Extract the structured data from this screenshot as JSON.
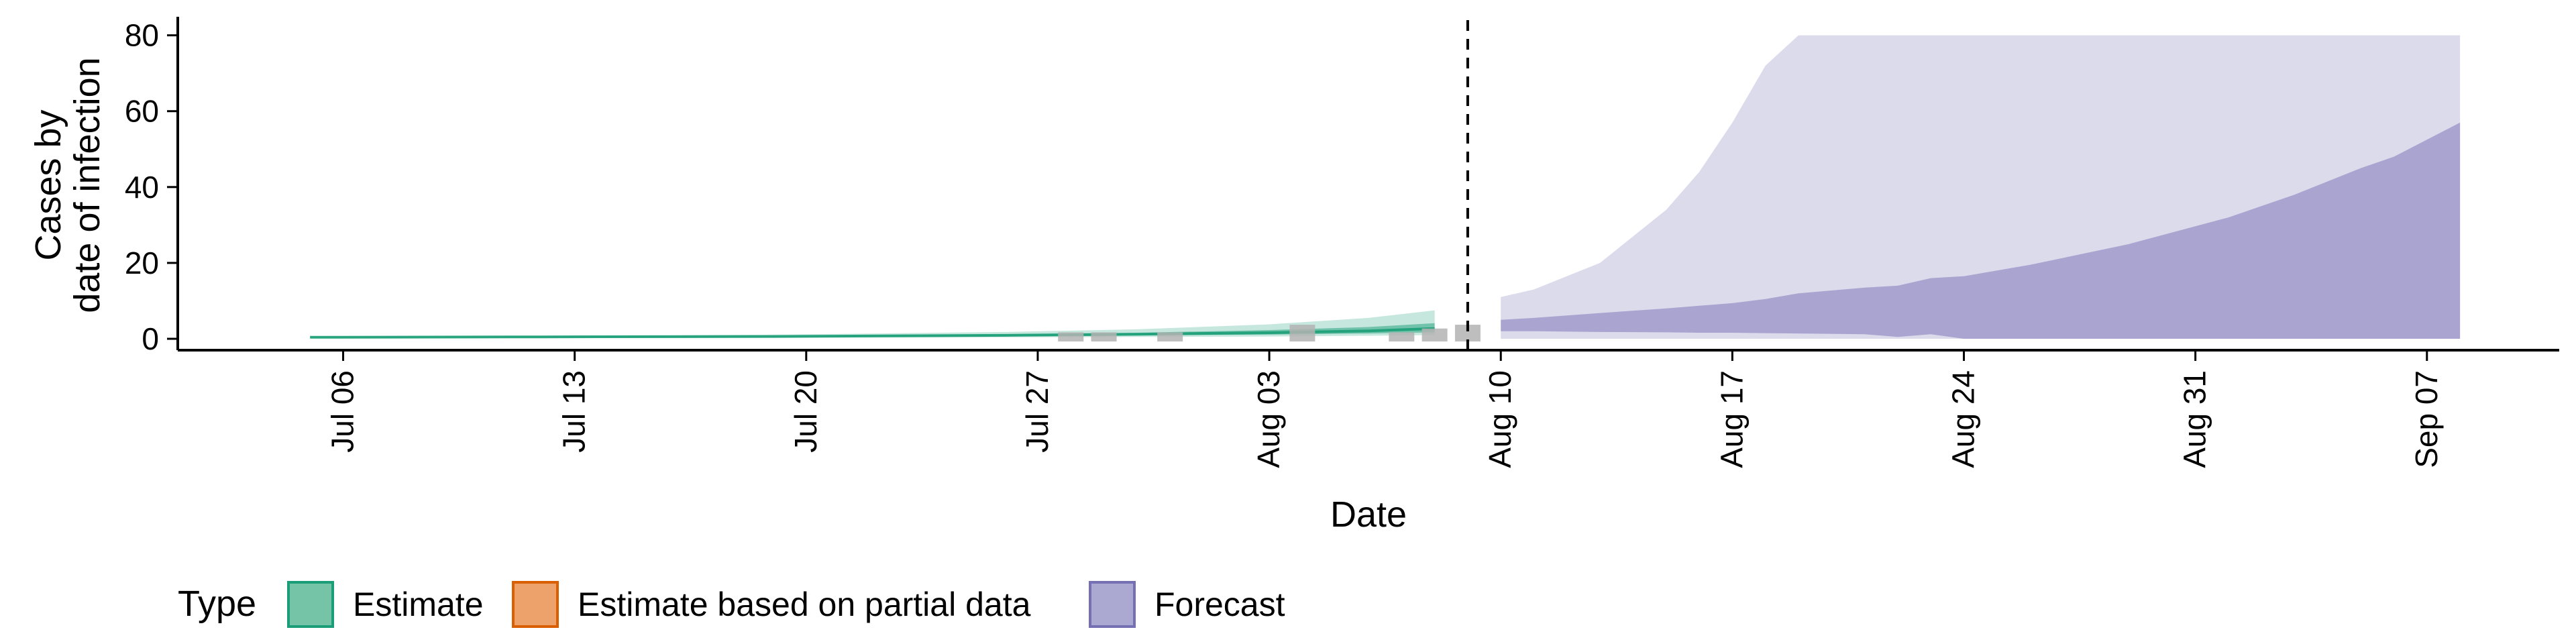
{
  "chart_data": {
    "type": "area",
    "title": "",
    "xlabel": "Date",
    "ylabel": [
      "Cases by",
      "date of infection"
    ],
    "xlim": [
      "2020-07-01",
      "2020-09-11"
    ],
    "ylim": [
      -3,
      84
    ],
    "x_ticks": [
      {
        "date": "2020-07-06",
        "label": "Jul 06"
      },
      {
        "date": "2020-07-13",
        "label": "Jul 13"
      },
      {
        "date": "2020-07-20",
        "label": "Jul 20"
      },
      {
        "date": "2020-07-27",
        "label": "Jul 27"
      },
      {
        "date": "2020-08-03",
        "label": "Aug 03"
      },
      {
        "date": "2020-08-10",
        "label": "Aug 10"
      },
      {
        "date": "2020-08-17",
        "label": "Aug 17"
      },
      {
        "date": "2020-08-24",
        "label": "Aug 24"
      },
      {
        "date": "2020-08-31",
        "label": "Aug 31"
      },
      {
        "date": "2020-09-07",
        "label": "Sep 07"
      }
    ],
    "y_ticks": [
      0,
      20,
      40,
      60,
      80
    ],
    "cutoff_date": "2020-08-09",
    "grid": false,
    "legend": {
      "title": "Type",
      "position": "bottom",
      "items": [
        {
          "label": "Estimate",
          "fill": "#76c4a7",
          "stroke": "#1b9e77"
        },
        {
          "label": "Estimate based on partial data",
          "fill": "#eca26a",
          "stroke": "#d95f02"
        },
        {
          "label": "Forecast",
          "fill": "#aba8d2",
          "stroke": "#7570b3"
        }
      ]
    },
    "series": [
      {
        "type": "Estimate",
        "color": "#1b9e77",
        "x": [
          "2020-07-05",
          "2020-07-12",
          "2020-07-19",
          "2020-07-26",
          "2020-07-30",
          "2020-08-03",
          "2020-08-06",
          "2020-08-08"
        ],
        "outer_lower": [
          0.2,
          0.3,
          0.3,
          0.4,
          0.5,
          0.6,
          0.8,
          1.0
        ],
        "outer_upper": [
          0.6,
          0.8,
          1.1,
          1.8,
          2.5,
          3.8,
          5.5,
          7.5
        ],
        "inner_lower": [
          0.3,
          0.4,
          0.5,
          0.7,
          0.9,
          1.1,
          1.4,
          1.7
        ],
        "inner_upper": [
          0.5,
          0.6,
          0.8,
          1.2,
          1.6,
          2.3,
          3.1,
          4.1
        ],
        "median": [
          0.4,
          0.5,
          0.6,
          0.9,
          1.2,
          1.6,
          2.1,
          2.7
        ]
      },
      {
        "type": "Forecast",
        "color": "#7570b3",
        "x": [
          "2020-08-10",
          "2020-08-11",
          "2020-08-13",
          "2020-08-15",
          "2020-08-16",
          "2020-08-17",
          "2020-08-18",
          "2020-08-19",
          "2020-08-21",
          "2020-08-22",
          "2020-08-23",
          "2020-08-24",
          "2020-08-26",
          "2020-08-29",
          "2020-09-01",
          "2020-09-03",
          "2020-09-05",
          "2020-09-06",
          "2020-09-08"
        ],
        "outer_lower": [
          0.0,
          0.0,
          0.0,
          0.0,
          0.0,
          0.0,
          0.0,
          0.0,
          0.0,
          0.0,
          0.0,
          0.0,
          0.0,
          0.0,
          0.0,
          0.0,
          0.0,
          0.0,
          0.0
        ],
        "outer_upper": [
          11,
          13,
          20,
          34,
          44,
          57,
          72,
          80,
          80,
          80,
          80,
          80,
          80,
          80,
          80,
          80,
          80,
          80,
          80
        ],
        "inner_lower": [
          2.0,
          2.0,
          1.8,
          1.7,
          1.6,
          1.6,
          1.5,
          1.4,
          1.2,
          0.5,
          1.2,
          0.0,
          0.0,
          0.0,
          0.0,
          0.0,
          0.0,
          0.0,
          0.0
        ],
        "inner_upper": [
          5,
          5.5,
          6.8,
          8,
          8.7,
          9.4,
          10.5,
          12,
          13.5,
          14,
          16,
          16.5,
          19.5,
          25,
          32,
          38,
          45,
          48,
          57
        ]
      }
    ],
    "observations": {
      "color": "#b3b3b3",
      "x": [
        "2020-07-28",
        "2020-07-29",
        "2020-07-31",
        "2020-08-04",
        "2020-08-07",
        "2020-08-08",
        "2020-08-09"
      ],
      "y": [
        1,
        1,
        1,
        3,
        1,
        2,
        3
      ]
    }
  }
}
